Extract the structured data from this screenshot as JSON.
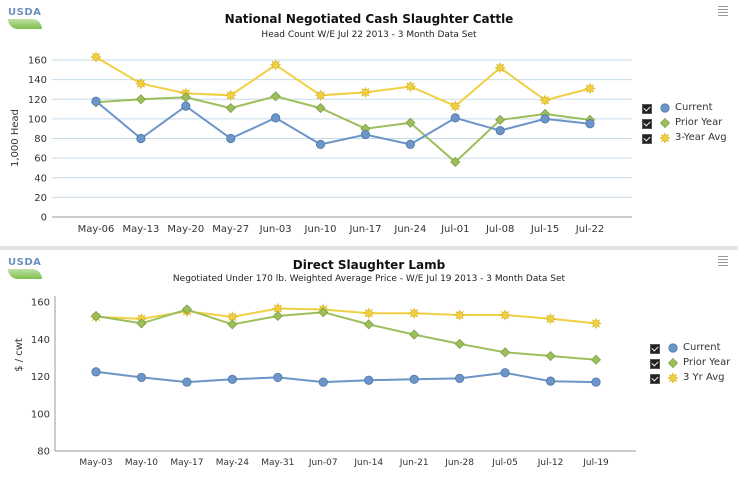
{
  "logo": {
    "text": "USDA"
  },
  "charts": [
    {
      "type": "line",
      "title": "National Negotiated Cash Slaughter Cattle",
      "subtitle": "Head Count W/E Jul 22 2013 - 3 Month Data Set",
      "ylabel": "1,000 Head",
      "xlabel": "",
      "ylim": [
        0,
        160
      ],
      "yticks": [
        0,
        20,
        40,
        60,
        80,
        100,
        120,
        140,
        160
      ],
      "categories": [
        "May-06",
        "May-13",
        "May-20",
        "May-27",
        "Jun-03",
        "Jun-10",
        "Jun-17",
        "Jun-24",
        "Jul-01",
        "Jul-08",
        "Jul-15",
        "Jul-22"
      ],
      "legend_position": "right",
      "series": [
        {
          "name": "Current",
          "color": "#6c95c8",
          "marker": "circle",
          "values": [
            118,
            80,
            113,
            80,
            101,
            74,
            84,
            74,
            101,
            88,
            100,
            95
          ]
        },
        {
          "name": "Prior Year",
          "color": "#9cbf5c",
          "marker": "diamond",
          "values": [
            117,
            120,
            122,
            111,
            123,
            111,
            90,
            96,
            56,
            99,
            105,
            99
          ]
        },
        {
          "name": "3-Year Avg",
          "color": "#f0cf40",
          "marker": "star",
          "values": [
            163,
            136,
            126,
            124,
            155,
            124,
            127,
            133,
            113,
            152,
            119,
            131
          ]
        }
      ]
    },
    {
      "type": "line",
      "title": "Direct Slaughter Lamb",
      "subtitle": "Negotiated Under 170 lb. Weighted Average Price - W/E Jul 19 2013 - 3 Month Data Set",
      "ylabel": "$ / cwt",
      "xlabel": "",
      "ylim": [
        80,
        160
      ],
      "yticks": [
        80,
        100,
        120,
        140,
        160
      ],
      "categories": [
        "May-03",
        "May-10",
        "May-17",
        "May-24",
        "May-31",
        "Jun-07",
        "Jun-14",
        "Jun-21",
        "Jun-28",
        "Jul-05",
        "Jul-12",
        "Jul-19"
      ],
      "legend_position": "right",
      "series": [
        {
          "name": "Current",
          "color": "#6c95c8",
          "marker": "circle",
          "values": [
            122.5,
            119.5,
            117,
            118.5,
            119.5,
            117,
            118,
            118.5,
            119,
            122,
            117.5,
            117
          ]
        },
        {
          "name": "Prior Year",
          "color": "#9cbf5c",
          "marker": "diamond",
          "values": [
            152.5,
            148.5,
            156,
            148,
            152.5,
            154.5,
            148,
            142.5,
            137.5,
            133,
            131,
            129
          ]
        },
        {
          "name": "3 Yr Avg",
          "color": "#f0cf40",
          "marker": "star",
          "values": [
            152,
            151,
            155,
            152,
            156.5,
            156,
            154,
            154,
            153,
            153,
            151,
            148.5
          ]
        }
      ]
    }
  ]
}
